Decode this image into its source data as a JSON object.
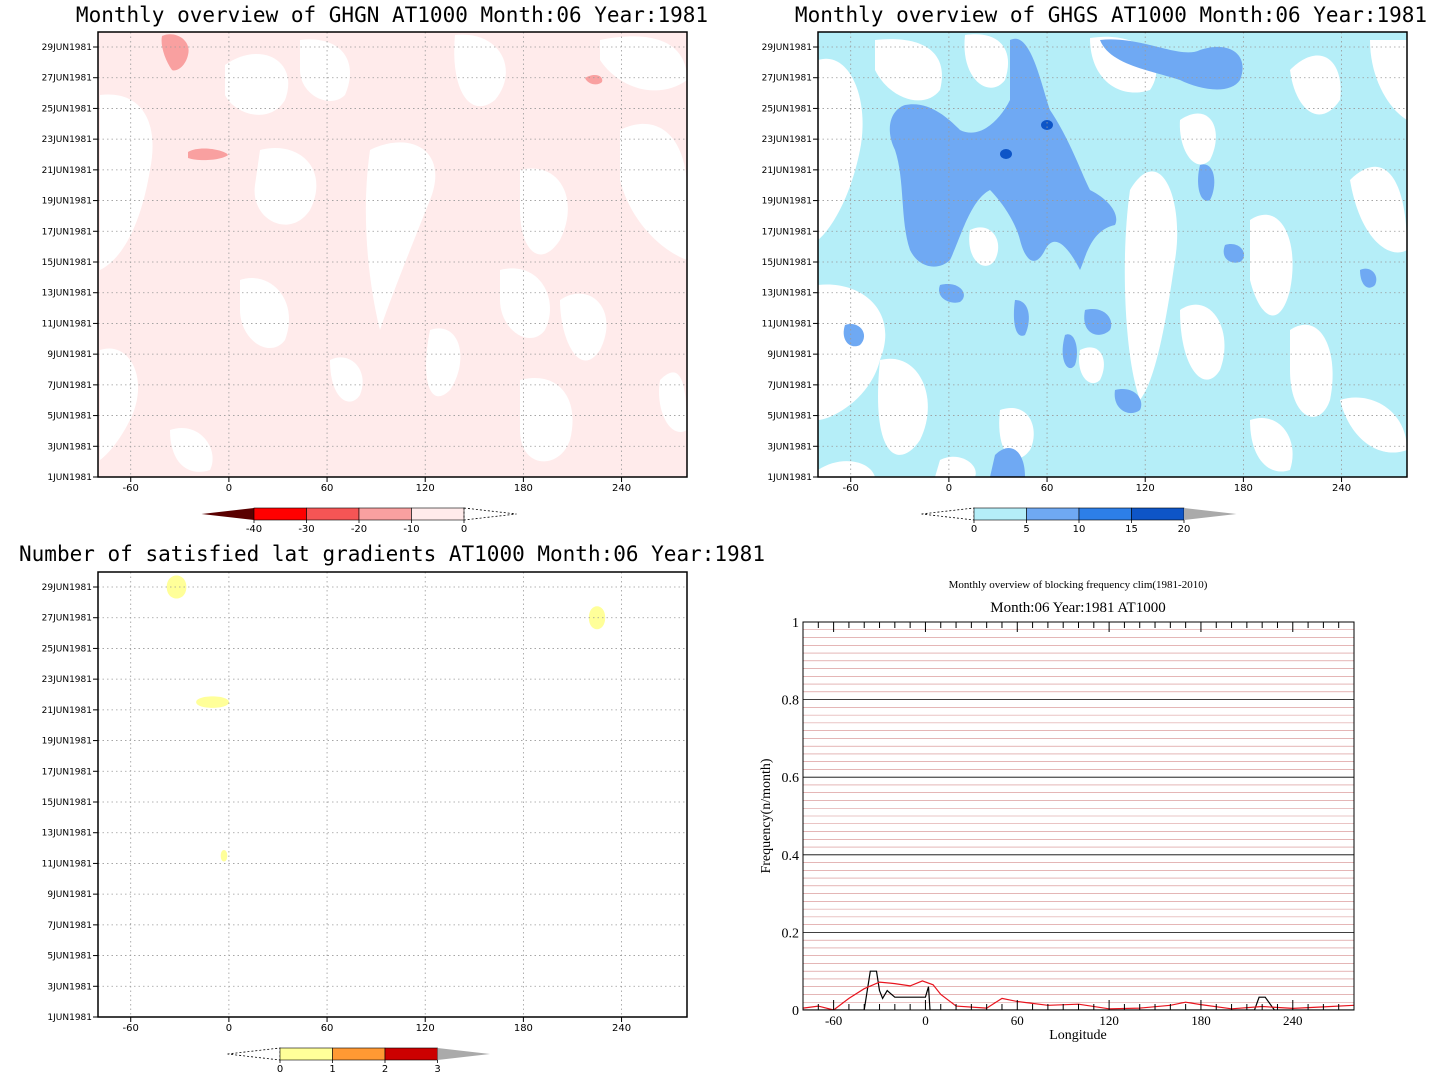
{
  "panels": {
    "ghgn": {
      "title": "Monthly overview of GHGN AT1000 Month:06 Year:1981",
      "colorbar": {
        "labels": [
          "-40",
          "-30",
          "-20",
          "-10",
          "0"
        ],
        "colors": [
          "#5a0000",
          "#ff0000",
          "#f55555",
          "#f9a0a0",
          "#ffebeb"
        ]
      },
      "base_fill": "#ffebeb",
      "accent_fill": "#f9a0a0"
    },
    "ghgs": {
      "title": "Monthly overview of GHGS AT1000 Month:06 Year:1981",
      "colorbar": {
        "labels": [
          "0",
          "5",
          "10",
          "15",
          "20"
        ],
        "colors": [
          "#b5eef8",
          "#6fa9f3",
          "#2d7fe8",
          "#0e55c7",
          "#aaaaaa"
        ]
      },
      "base_fill": "#b5eef8",
      "accent_fill": "#6fa9f3"
    },
    "lat": {
      "title": "Number of satisfied lat gradients AT1000 Month:06 Year:1981",
      "colorbar": {
        "labels": [
          "0",
          "1",
          "2",
          "3"
        ],
        "colors": [
          "#ffff99",
          "#ff9933",
          "#cc0000",
          "#aaaaaa"
        ]
      },
      "fill": "#ffff99"
    },
    "freq": {
      "title_line1": "Monthly overview of blocking frequency clim(1981-2010)",
      "title_line2": "Month:06 Year:1981  AT1000"
    }
  },
  "y_date_labels": [
    "29JUN1981",
    "27JUN1981",
    "25JUN1981",
    "23JUN1981",
    "21JUN1981",
    "19JUN1981",
    "17JUN1981",
    "15JUN1981",
    "13JUN1981",
    "11JUN1981",
    "9JUN1981",
    "7JUN1981",
    "5JUN1981",
    "3JUN1981",
    "1JUN1981"
  ],
  "x_lon_labels": [
    "-60",
    "0",
    "60",
    "120",
    "180",
    "240"
  ],
  "chart_data": [
    {
      "type": "heatmap",
      "title": "Monthly overview of GHGN AT1000 Month:06 Year:1981",
      "x_range": [
        -80,
        280
      ],
      "y_range": [
        "1JUN1981",
        "30JUN1981"
      ],
      "x_ticks": [
        -60,
        0,
        60,
        120,
        180,
        240
      ],
      "legend_levels": [
        -40,
        -30,
        -20,
        -10,
        0
      ],
      "grid": true
    },
    {
      "type": "heatmap",
      "title": "Monthly overview of GHGS AT1000 Month:06 Year:1981",
      "x_range": [
        -80,
        280
      ],
      "y_range": [
        "1JUN1981",
        "30JUN1981"
      ],
      "x_ticks": [
        -60,
        0,
        60,
        120,
        180,
        240
      ],
      "legend_levels": [
        0,
        5,
        10,
        15,
        20
      ],
      "grid": true
    },
    {
      "type": "heatmap",
      "title": "Number of satisfied lat gradients AT1000 Month:06 Year:1981",
      "x_range": [
        -80,
        280
      ],
      "y_range": [
        "1JUN1981",
        "30JUN1981"
      ],
      "x_ticks": [
        -60,
        0,
        60,
        120,
        180,
        240
      ],
      "legend_levels": [
        0,
        1,
        2,
        3
      ],
      "grid": true,
      "regions": [
        {
          "lon": [
            -38,
            -26
          ],
          "date": [
            "28JUN1981",
            "30JUN1981"
          ]
        },
        {
          "lon": [
            220,
            230
          ],
          "date": [
            "26JUN1981",
            "28JUN1981"
          ]
        },
        {
          "lon": [
            -20,
            0
          ],
          "date": [
            "21JUN1981",
            "22JUN1981"
          ]
        },
        {
          "lon": [
            -5,
            -1
          ],
          "date": [
            "11JUN1981",
            "12JUN1981"
          ]
        }
      ]
    },
    {
      "type": "line",
      "title": "Monthly overview of blocking frequency clim(1981-2010)",
      "subtitle": "Month:06 Year:1981  AT1000",
      "xlabel": "Longitude",
      "ylabel": "Frequency(n/month)",
      "xlim": [
        -80,
        280
      ],
      "ylim": [
        0,
        1
      ],
      "x_ticks": [
        -60,
        0,
        60,
        120,
        180,
        240
      ],
      "y_ticks": [
        0,
        0.2,
        0.4,
        0.6,
        0.8,
        1
      ],
      "y_tick_labels": [
        "0",
        "0.2",
        "0.4",
        "0.6",
        "0.8",
        "1"
      ],
      "grid": true,
      "series": [
        {
          "color": "#000000",
          "x": [
            -80,
            -40,
            -36,
            -32,
            -30,
            -28,
            -25,
            -20,
            -10,
            0,
            2,
            3,
            100,
            215,
            218,
            222,
            228,
            280
          ],
          "y": [
            0,
            0,
            0.1,
            0.1,
            0.05,
            0.03,
            0.05,
            0.033,
            0.033,
            0.033,
            0.06,
            0,
            0,
            0,
            0.033,
            0.033,
            0,
            0
          ]
        },
        {
          "color": "#e8141e",
          "x": [
            -80,
            -70,
            -60,
            -50,
            -40,
            -30,
            -20,
            -10,
            -2,
            5,
            10,
            20,
            40,
            50,
            60,
            80,
            100,
            120,
            140,
            160,
            170,
            180,
            200,
            220,
            240,
            260,
            280
          ],
          "y": [
            0.005,
            0.01,
            0.0,
            0.03,
            0.055,
            0.072,
            0.068,
            0.062,
            0.075,
            0.065,
            0.04,
            0.01,
            0.005,
            0.03,
            0.022,
            0.012,
            0.015,
            0.003,
            0.005,
            0.012,
            0.02,
            0.014,
            0.003,
            0.009,
            0.004,
            0.008,
            0.012
          ]
        }
      ]
    }
  ]
}
